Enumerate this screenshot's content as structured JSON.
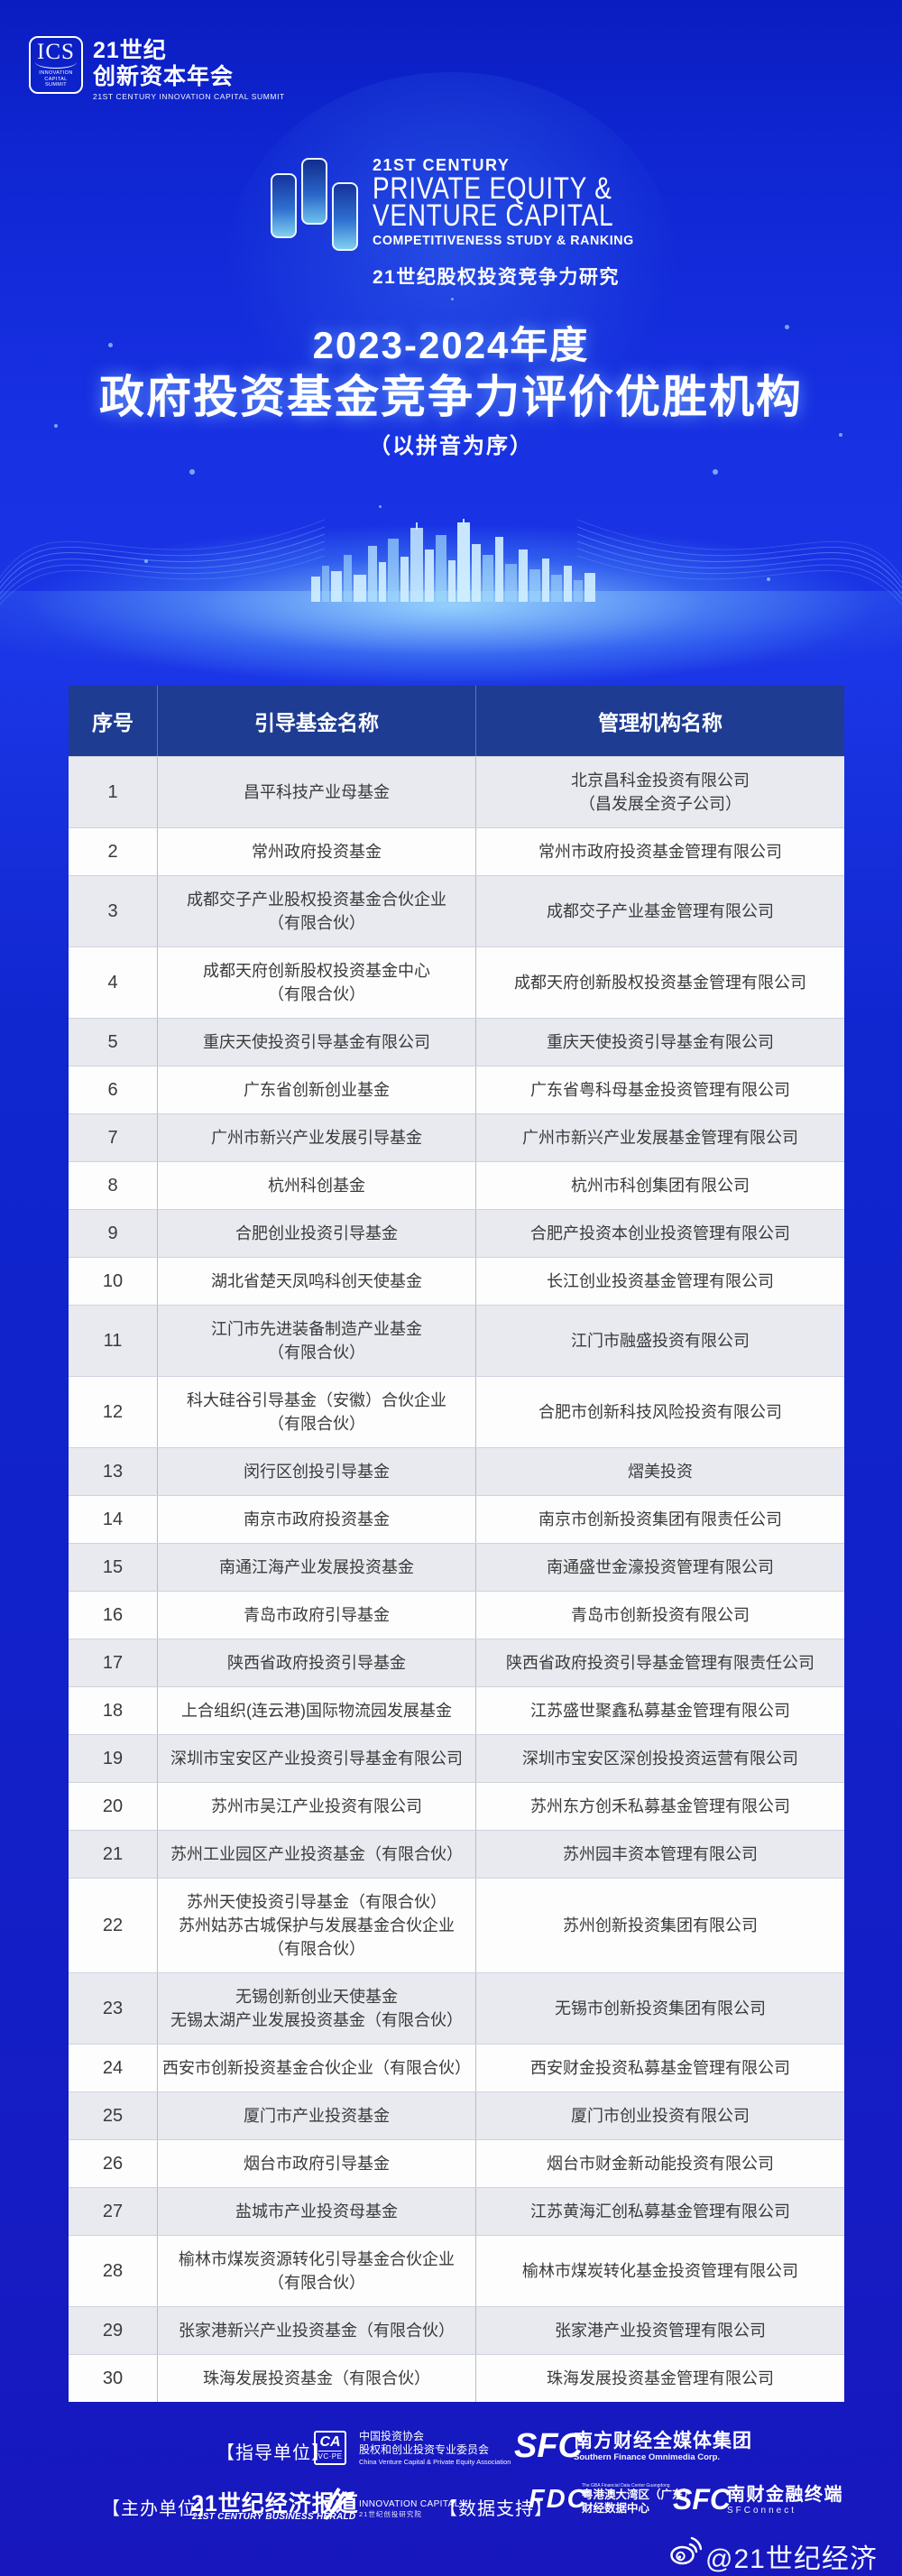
{
  "colors": {
    "background_blue": "#1126d4",
    "table_header_blue": "#1d3c92",
    "row_alt_gray": "#e8eaef",
    "row_white": "#fdfdfe",
    "text_dark": "#3a3a3a"
  },
  "summit_logo": {
    "abbr": "ICS",
    "sub1": "INNOVATION",
    "sub2": "CAPITAL",
    "sub3": "SUMMIT",
    "cn_line1": "21世纪",
    "cn_line2": "创新资本年会",
    "en": "21ST CENTURY INNOVATION CAPITAL SUMMIT"
  },
  "brand": {
    "century": "21ST CENTURY",
    "line1": "PRIVATE EQUITY &",
    "line2": "VENTURE CAPITAL",
    "line3": "COMPETITIVENESS STUDY & RANKING",
    "cn": "21世纪股权投资竞争力研究"
  },
  "title": {
    "year": "2023-2024年度",
    "main": "政府投资基金竞争力评价优胜机构",
    "note": "（以拼音为序）"
  },
  "table": {
    "columns": [
      "序号",
      "引导基金名称",
      "管理机构名称"
    ],
    "rows": [
      {
        "no": "1",
        "fund": [
          "昌平科技产业母基金"
        ],
        "manager": [
          "北京昌科金投资有限公司",
          "（昌发展全资子公司）"
        ]
      },
      {
        "no": "2",
        "fund": [
          "常州政府投资基金"
        ],
        "manager": [
          "常州市政府投资基金管理有限公司"
        ]
      },
      {
        "no": "3",
        "fund": [
          "成都交子产业股权投资基金合伙企业",
          "（有限合伙）"
        ],
        "manager": [
          "成都交子产业基金管理有限公司"
        ]
      },
      {
        "no": "4",
        "fund": [
          "成都天府创新股权投资基金中心",
          "（有限合伙）"
        ],
        "manager": [
          "成都天府创新股权投资基金管理有限公司"
        ]
      },
      {
        "no": "5",
        "fund": [
          "重庆天使投资引导基金有限公司"
        ],
        "manager": [
          "重庆天使投资引导基金有限公司"
        ]
      },
      {
        "no": "6",
        "fund": [
          "广东省创新创业基金"
        ],
        "manager": [
          "广东省粤科母基金投资管理有限公司"
        ]
      },
      {
        "no": "7",
        "fund": [
          "广州市新兴产业发展引导基金"
        ],
        "manager": [
          "广州市新兴产业发展基金管理有限公司"
        ]
      },
      {
        "no": "8",
        "fund": [
          "杭州科创基金"
        ],
        "manager": [
          "杭州市科创集团有限公司"
        ]
      },
      {
        "no": "9",
        "fund": [
          "合肥创业投资引导基金"
        ],
        "manager": [
          "合肥产投资本创业投资管理有限公司"
        ]
      },
      {
        "no": "10",
        "fund": [
          "湖北省楚天凤鸣科创天使基金"
        ],
        "manager": [
          "长江创业投资基金管理有限公司"
        ]
      },
      {
        "no": "11",
        "fund": [
          "江门市先进装备制造产业基金",
          "（有限合伙）"
        ],
        "manager": [
          "江门市融盛投资有限公司"
        ]
      },
      {
        "no": "12",
        "fund": [
          "科大硅谷引导基金（安徽）合伙企业",
          "（有限合伙）"
        ],
        "manager": [
          "合肥市创新科技风险投资有限公司"
        ]
      },
      {
        "no": "13",
        "fund": [
          "闵行区创投引导基金"
        ],
        "manager": [
          "熠美投资"
        ]
      },
      {
        "no": "14",
        "fund": [
          "南京市政府投资基金"
        ],
        "manager": [
          "南京市创新投资集团有限责任公司"
        ]
      },
      {
        "no": "15",
        "fund": [
          "南通江海产业发展投资基金"
        ],
        "manager": [
          "南通盛世金濠投资管理有限公司"
        ]
      },
      {
        "no": "16",
        "fund": [
          "青岛市政府引导基金"
        ],
        "manager": [
          "青岛市创新投资有限公司"
        ]
      },
      {
        "no": "17",
        "fund": [
          "陕西省政府投资引导基金"
        ],
        "manager": [
          "陕西省政府投资引导基金管理有限责任公司"
        ]
      },
      {
        "no": "18",
        "fund": [
          "上合组织(连云港)国际物流园发展基金"
        ],
        "manager": [
          "江苏盛世聚鑫私募基金管理有限公司"
        ]
      },
      {
        "no": "19",
        "fund": [
          "深圳市宝安区产业投资引导基金有限公司"
        ],
        "manager": [
          "深圳市宝安区深创投投资运营有限公司"
        ]
      },
      {
        "no": "20",
        "fund": [
          "苏州市吴江产业投资有限公司"
        ],
        "manager": [
          "苏州东方创禾私募基金管理有限公司"
        ]
      },
      {
        "no": "21",
        "fund": [
          "苏州工业园区产业投资基金（有限合伙）"
        ],
        "manager": [
          "苏州园丰资本管理有限公司"
        ]
      },
      {
        "no": "22",
        "fund": [
          "苏州天使投资引导基金（有限合伙）",
          "苏州姑苏古城保护与发展基金合伙企业",
          "（有限合伙）"
        ],
        "manager": [
          "苏州创新投资集团有限公司"
        ]
      },
      {
        "no": "23",
        "fund": [
          "无锡创新创业天使基金",
          "无锡太湖产业发展投资基金（有限合伙）"
        ],
        "manager": [
          "无锡市创新投资集团有限公司"
        ]
      },
      {
        "no": "24",
        "fund": [
          "西安市创新投资基金合伙企业（有限合伙）"
        ],
        "manager": [
          "西安财金投资私募基金管理有限公司"
        ]
      },
      {
        "no": "25",
        "fund": [
          "厦门市产业投资基金"
        ],
        "manager": [
          "厦门市创业投资有限公司"
        ]
      },
      {
        "no": "26",
        "fund": [
          "烟台市政府引导基金"
        ],
        "manager": [
          "烟台市财金新动能投资有限公司"
        ]
      },
      {
        "no": "27",
        "fund": [
          "盐城市产业投资母基金"
        ],
        "manager": [
          "江苏黄海汇创私募基金管理有限公司"
        ]
      },
      {
        "no": "28",
        "fund": [
          "榆林市煤炭资源转化引导基金合伙企业",
          "（有限合伙）"
        ],
        "manager": [
          "榆林市煤炭转化基金投资管理有限公司"
        ]
      },
      {
        "no": "29",
        "fund": [
          "张家港新兴产业投资基金（有限合伙）"
        ],
        "manager": [
          "张家港产业投资管理有限公司"
        ]
      },
      {
        "no": "30",
        "fund": [
          "珠海发展投资基金（有限合伙）"
        ],
        "manager": [
          "珠海发展投资基金管理有限公司"
        ]
      }
    ]
  },
  "footer": {
    "guide_label": "【指导单位】",
    "ca": {
      "top": "CA",
      "bottom": "VC·PE",
      "line1": "中国投资协会",
      "line2": "股权和创业投资专业委员会",
      "line3": "China Venture Capital & Private Equity Association"
    },
    "sfc_media": {
      "abbr": "SFC",
      "cn": "南方财经全媒体集团",
      "en": "Southern Finance Omnimedia Corp."
    },
    "host_label": "【主办单位】",
    "herald": {
      "cn": "21世纪经济报道",
      "en": "21ST CENTURY BUSINESS HERALD"
    },
    "innovation_capital": {
      "en": "INNOVATION CAPITAL",
      "cn": "21世纪创投研究院"
    },
    "data_label": "【数据支持】",
    "fdc": {
      "abbr": "FDC",
      "tiny": "The GBA Financial Data Center Guangdong",
      "cn1": "粤港澳大湾区（广东）",
      "cn2": "财经数据中心"
    },
    "sfc_connect": {
      "abbr": "SFC",
      "cn": "南财金融终端",
      "en": "SFConnect"
    },
    "weibo_handle": "@21世纪经济报道"
  }
}
